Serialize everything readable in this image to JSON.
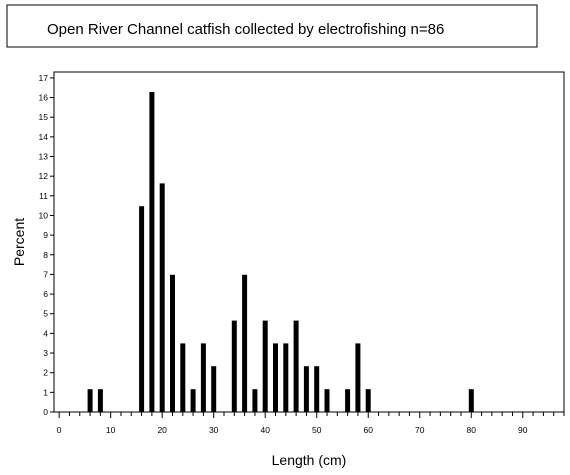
{
  "chart_data": {
    "type": "bar",
    "title": "Open River Channel catfish collected by electrofishing n=86",
    "xlabel": "Length (cm)",
    "ylabel": "Percent",
    "xlim": [
      -1,
      98
    ],
    "ylim": [
      0,
      17.3
    ],
    "x_ticks_labeled": [
      0,
      10,
      20,
      30,
      40,
      50,
      60,
      70,
      80,
      90
    ],
    "x_minor_step": 2,
    "y_ticks": [
      0,
      1,
      2,
      3,
      4,
      5,
      6,
      7,
      8,
      9,
      10,
      11,
      12,
      13,
      14,
      15,
      16,
      17
    ],
    "grid": false,
    "bar_color": "#000000",
    "points": [
      {
        "x": 6,
        "y": 1.16
      },
      {
        "x": 8,
        "y": 1.16
      },
      {
        "x": 16,
        "y": 10.47
      },
      {
        "x": 18,
        "y": 16.28
      },
      {
        "x": 20,
        "y": 11.63
      },
      {
        "x": 22,
        "y": 6.98
      },
      {
        "x": 24,
        "y": 3.49
      },
      {
        "x": 26,
        "y": 1.16
      },
      {
        "x": 28,
        "y": 3.49
      },
      {
        "x": 30,
        "y": 2.33
      },
      {
        "x": 34,
        "y": 4.65
      },
      {
        "x": 36,
        "y": 6.98
      },
      {
        "x": 38,
        "y": 1.16
      },
      {
        "x": 40,
        "y": 4.65
      },
      {
        "x": 42,
        "y": 3.49
      },
      {
        "x": 44,
        "y": 3.49
      },
      {
        "x": 46,
        "y": 4.65
      },
      {
        "x": 48,
        "y": 2.33
      },
      {
        "x": 50,
        "y": 2.33
      },
      {
        "x": 52,
        "y": 1.16
      },
      {
        "x": 56,
        "y": 1.16
      },
      {
        "x": 58,
        "y": 3.49
      },
      {
        "x": 60,
        "y": 1.16
      },
      {
        "x": 80,
        "y": 1.16
      }
    ]
  }
}
